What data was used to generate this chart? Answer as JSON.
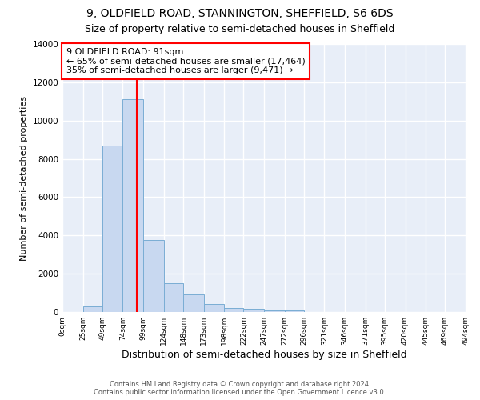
{
  "title": "9, OLDFIELD ROAD, STANNINGTON, SHEFFIELD, S6 6DS",
  "subtitle": "Size of property relative to semi-detached houses in Sheffield",
  "xlabel": "Distribution of semi-detached houses by size in Sheffield",
  "ylabel": "Number of semi-detached properties",
  "bar_edges": [
    0,
    25,
    49,
    74,
    99,
    124,
    148,
    173,
    198,
    222,
    247,
    272,
    296,
    321,
    346,
    371,
    395,
    420,
    445,
    469,
    494
  ],
  "bar_heights": [
    0,
    300,
    8700,
    11100,
    3750,
    1500,
    900,
    400,
    200,
    150,
    100,
    100,
    0,
    0,
    0,
    0,
    0,
    0,
    0,
    0
  ],
  "bar_color": "#c8d8f0",
  "bar_edge_color": "#7aadd4",
  "vline_x": 91,
  "vline_color": "red",
  "annotation_title": "9 OLDFIELD ROAD: 91sqm",
  "annotation_line1": "← 65% of semi-detached houses are smaller (17,464)",
  "annotation_line2": "35% of semi-detached houses are larger (9,471) →",
  "annotation_box_color": "white",
  "annotation_box_edgecolor": "red",
  "ylim": [
    0,
    14000
  ],
  "yticks": [
    0,
    2000,
    4000,
    6000,
    8000,
    10000,
    12000,
    14000
  ],
  "xtick_labels": [
    "0sqm",
    "25sqm",
    "49sqm",
    "74sqm",
    "99sqm",
    "124sqm",
    "148sqm",
    "173sqm",
    "198sqm",
    "222sqm",
    "247sqm",
    "272sqm",
    "296sqm",
    "321sqm",
    "346sqm",
    "371sqm",
    "395sqm",
    "420sqm",
    "445sqm",
    "469sqm",
    "494sqm"
  ],
  "background_color": "#ffffff",
  "plot_bg_color": "#e8eef8",
  "footer_line1": "Contains HM Land Registry data © Crown copyright and database right 2024.",
  "footer_line2": "Contains public sector information licensed under the Open Government Licence v3.0.",
  "title_fontsize": 10,
  "subtitle_fontsize": 9,
  "grid_color": "#ffffff",
  "grid_linewidth": 1.0
}
